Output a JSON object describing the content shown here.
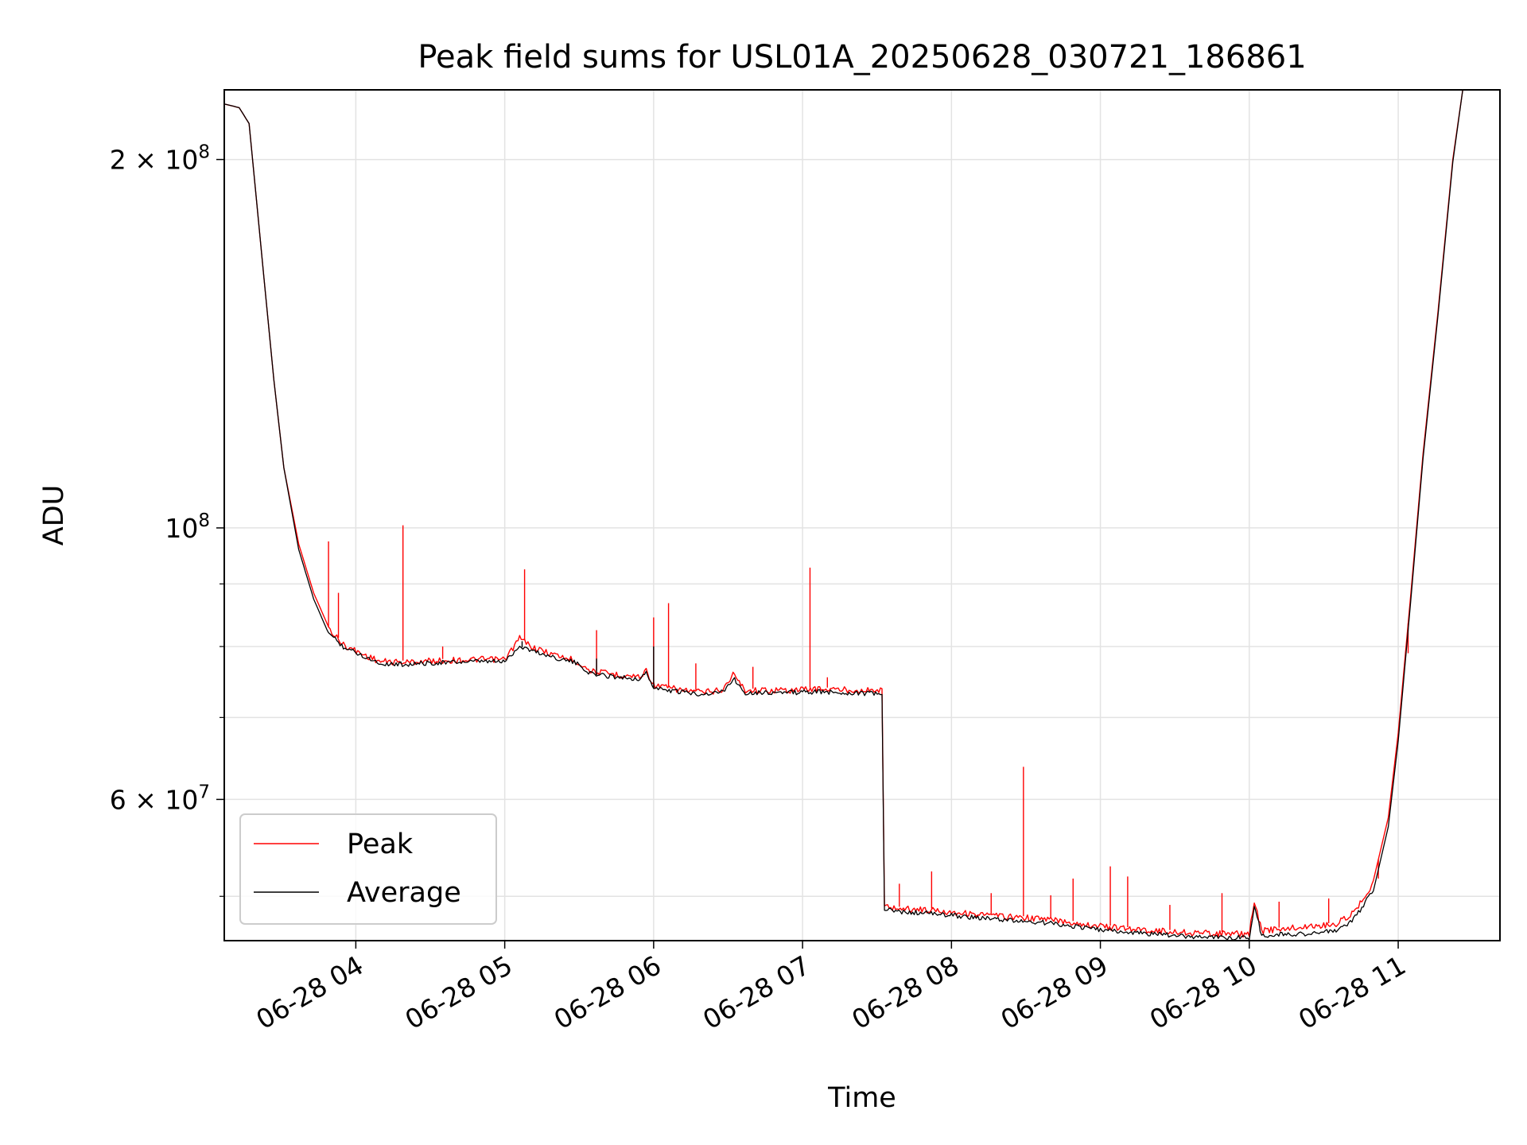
{
  "chart_data": {
    "type": "line",
    "title": "Peak field sums for USL01A_20250628_030721_186861",
    "xlabel": "Time",
    "ylabel": "ADU",
    "x_tick_labels": [
      "06-28 04",
      "06-28 05",
      "06-28 06",
      "06-28 07",
      "06-28 08",
      "06-28 09",
      "06-28 10",
      "06-28 11"
    ],
    "y_tick_labels": [
      {
        "value": 200000000,
        "mantissa": "2",
        "exponent": "8"
      },
      {
        "value": 100000000,
        "mantissa": "",
        "exponent": "8"
      },
      {
        "value": 60000000,
        "mantissa": "6",
        "exponent": "7"
      }
    ],
    "y_scale": "log",
    "ylim": [
      46000000,
      228000000
    ],
    "x_range": [
      "2025-06-28 03:07",
      "2025-06-28 11:41"
    ],
    "grid": true,
    "legend_position": "lower-left",
    "series": [
      {
        "name": "Peak",
        "color": "#ff0000",
        "points": [
          [
            "03:07",
            222000000
          ],
          [
            "03:13",
            220500000
          ],
          [
            "03:17",
            214000000
          ],
          [
            "03:20",
            185000000
          ],
          [
            "03:23",
            160000000
          ],
          [
            "03:27",
            132000000
          ],
          [
            "03:31",
            112000000
          ],
          [
            "03:37",
            97000000
          ],
          [
            "03:43",
            88500000
          ],
          [
            "03:49",
            83000000
          ],
          [
            "03:55",
            80500000
          ],
          [
            "04:02",
            79200000
          ],
          [
            "04:10",
            78000000
          ],
          [
            "04:20",
            77900000
          ],
          [
            "04:30",
            78100000
          ],
          [
            "04:40",
            78200000
          ],
          [
            "04:50",
            78300000
          ],
          [
            "05:00",
            78300000
          ],
          [
            "05:06",
            81500000
          ],
          [
            "05:12",
            80000000
          ],
          [
            "05:20",
            79000000
          ],
          [
            "05:28",
            78200000
          ],
          [
            "05:35",
            76600000
          ],
          [
            "05:45",
            76100000
          ],
          [
            "05:55",
            75800000
          ],
          [
            "05:57",
            76800000
          ],
          [
            "06:00",
            74600000
          ],
          [
            "06:10",
            74000000
          ],
          [
            "06:20",
            73600000
          ],
          [
            "06:28",
            74000000
          ],
          [
            "06:32",
            76200000
          ],
          [
            "06:37",
            73900000
          ],
          [
            "06:45",
            73900000
          ],
          [
            "06:55",
            73900000
          ],
          [
            "07:05",
            74100000
          ],
          [
            "07:15",
            74000000
          ],
          [
            "07:25",
            73900000
          ],
          [
            "07:32",
            73900000
          ],
          [
            "07:33",
            49200000
          ],
          [
            "07:40",
            49000000
          ],
          [
            "07:50",
            48900000
          ],
          [
            "08:00",
            48700000
          ],
          [
            "08:10",
            48500000
          ],
          [
            "08:20",
            48300000
          ],
          [
            "08:30",
            48150000
          ],
          [
            "08:40",
            48000000
          ],
          [
            "08:50",
            47700000
          ],
          [
            "09:00",
            47400000
          ],
          [
            "09:10",
            47200000
          ],
          [
            "09:20",
            47050000
          ],
          [
            "09:30",
            46900000
          ],
          [
            "09:40",
            46800000
          ],
          [
            "09:50",
            46750000
          ],
          [
            "10:00",
            46700000
          ],
          [
            "10:02",
            49700000
          ],
          [
            "10:05",
            47000000
          ],
          [
            "10:15",
            47200000
          ],
          [
            "10:25",
            47400000
          ],
          [
            "10:35",
            47600000
          ],
          [
            "10:42",
            48600000
          ],
          [
            "10:50",
            51500000
          ],
          [
            "10:56",
            58000000
          ],
          [
            "11:00",
            68000000
          ],
          [
            "11:05",
            88000000
          ],
          [
            "11:10",
            115000000
          ],
          [
            "11:16",
            150000000
          ],
          [
            "11:22",
            200000000
          ],
          [
            "11:26",
            228000000
          ]
        ],
        "spikes": [
          [
            "03:49",
            97500000
          ],
          [
            "03:53",
            88500000
          ],
          [
            "04:19",
            100500000
          ],
          [
            "04:35",
            80000000
          ],
          [
            "05:08",
            92500000
          ],
          [
            "05:37",
            82500000
          ],
          [
            "06:00",
            84500000
          ],
          [
            "06:06",
            86800000
          ],
          [
            "06:17",
            77500000
          ],
          [
            "06:40",
            77000000
          ],
          [
            "07:03",
            92800000
          ],
          [
            "07:10",
            75500000
          ],
          [
            "07:39",
            51200000
          ],
          [
            "07:52",
            52400000
          ],
          [
            "08:16",
            50300000
          ],
          [
            "08:29",
            63800000
          ],
          [
            "08:40",
            50100000
          ],
          [
            "08:49",
            51700000
          ],
          [
            "09:04",
            52900000
          ],
          [
            "09:11",
            51900000
          ],
          [
            "09:28",
            49200000
          ],
          [
            "09:49",
            50300000
          ],
          [
            "10:12",
            49500000
          ],
          [
            "10:32",
            49800000
          ],
          [
            "10:52",
            51700000
          ],
          [
            "11:04",
            79000000
          ]
        ]
      },
      {
        "name": "Average",
        "color": "#000000",
        "points": [
          [
            "03:07",
            222000000
          ],
          [
            "03:13",
            220500000
          ],
          [
            "03:17",
            214000000
          ],
          [
            "03:20",
            185000000
          ],
          [
            "03:23",
            160000000
          ],
          [
            "03:27",
            132000000
          ],
          [
            "03:31",
            112000000
          ],
          [
            "03:37",
            96000000
          ],
          [
            "03:43",
            87500000
          ],
          [
            "03:49",
            82000000
          ],
          [
            "03:55",
            79900000
          ],
          [
            "04:02",
            78700000
          ],
          [
            "04:10",
            77400000
          ],
          [
            "04:20",
            77300000
          ],
          [
            "04:30",
            77500000
          ],
          [
            "04:40",
            77600000
          ],
          [
            "04:50",
            77700000
          ],
          [
            "05:00",
            77700000
          ],
          [
            "05:06",
            80000000
          ],
          [
            "05:12",
            79200000
          ],
          [
            "05:20",
            78300000
          ],
          [
            "05:28",
            77600000
          ],
          [
            "05:35",
            75900000
          ],
          [
            "05:45",
            75500000
          ],
          [
            "05:55",
            75200000
          ],
          [
            "05:57",
            76200000
          ],
          [
            "06:00",
            73900000
          ],
          [
            "06:10",
            73400000
          ],
          [
            "06:20",
            73100000
          ],
          [
            "06:28",
            73400000
          ],
          [
            "06:32",
            75300000
          ],
          [
            "06:37",
            73300000
          ],
          [
            "06:45",
            73300000
          ],
          [
            "06:55",
            73300000
          ],
          [
            "07:05",
            73400000
          ],
          [
            "07:15",
            73300000
          ],
          [
            "07:25",
            73200000
          ],
          [
            "07:32",
            73100000
          ],
          [
            "07:33",
            48700000
          ],
          [
            "07:40",
            48500000
          ],
          [
            "07:50",
            48400000
          ],
          [
            "08:00",
            48200000
          ],
          [
            "08:10",
            48000000
          ],
          [
            "08:20",
            47800000
          ],
          [
            "08:30",
            47650000
          ],
          [
            "08:40",
            47500000
          ],
          [
            "08:50",
            47200000
          ],
          [
            "09:00",
            46900000
          ],
          [
            "09:10",
            46700000
          ],
          [
            "09:20",
            46550000
          ],
          [
            "09:30",
            46400000
          ],
          [
            "09:40",
            46300000
          ],
          [
            "09:50",
            46250000
          ],
          [
            "10:00",
            46200000
          ],
          [
            "10:02",
            49100000
          ],
          [
            "10:05",
            46400000
          ],
          [
            "10:15",
            46500000
          ],
          [
            "10:25",
            46600000
          ],
          [
            "10:35",
            46800000
          ],
          [
            "10:42",
            47800000
          ],
          [
            "10:50",
            50500000
          ],
          [
            "10:56",
            57000000
          ],
          [
            "11:00",
            67000000
          ],
          [
            "11:05",
            87000000
          ],
          [
            "11:10",
            114000000
          ],
          [
            "11:16",
            149000000
          ],
          [
            "11:22",
            199000000
          ],
          [
            "11:26",
            228000000
          ]
        ],
        "spikes": [
          [
            "05:07",
            80800000
          ],
          [
            "05:37",
            78200000
          ],
          [
            "06:00",
            80000000
          ]
        ]
      }
    ]
  },
  "colors": {
    "peak": "#ff0000",
    "average": "#000000",
    "grid": "#e3e3e3"
  }
}
